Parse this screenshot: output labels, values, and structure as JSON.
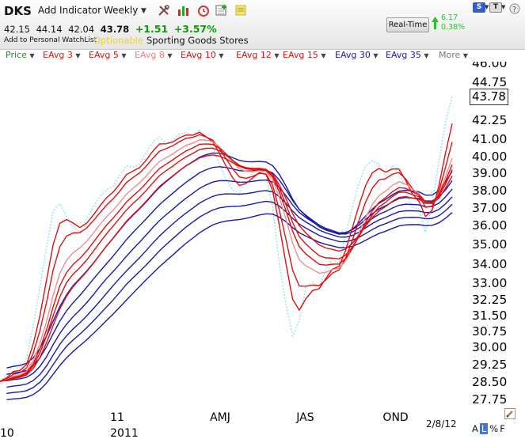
{
  "header": {
    "ticker": "DKS",
    "add_indicator_label": "Add Indicator",
    "period_label": "Weekly",
    "prices": {
      "open": "42.15",
      "high": "44.14",
      "low": "42.04",
      "last": "43.78"
    },
    "change": "+1.51",
    "change_pct": "+3.57%",
    "watchlist_label": "Add to Personal WatchList",
    "optionable_label": "Optionable",
    "sector_label": "Sporting Goods Stores",
    "realtime_label": "Real-Time",
    "rt_change": "6.17",
    "rt_change_pct": "0.38%",
    "s_button": "S",
    "t_button": "T"
  },
  "indicators": [
    {
      "label": "Price",
      "color": "#2f7f2f"
    },
    {
      "label": "EAvg 3",
      "color": "#dd1111"
    },
    {
      "label": "EAvg 5",
      "color": "#dd1111"
    },
    {
      "label": "EAvg 8",
      "color": "#ee7f7f"
    },
    {
      "label": "EAvg 10",
      "color": "#dd1111"
    },
    {
      "label": "EAvg 12",
      "color": "#dd1111"
    },
    {
      "label": "EAvg 15",
      "color": "#dd1111"
    },
    {
      "label": "EAvg 30",
      "color": "#1a1aa8"
    },
    {
      "label": "EAvg 35",
      "color": "#1a1aa8"
    },
    {
      "label": "More",
      "color": "#777777"
    }
  ],
  "chart_data": {
    "type": "line",
    "y_ticks": [
      46.0,
      44.75,
      42.25,
      41.0,
      40.0,
      39.0,
      38.0,
      37.0,
      36.0,
      35.0,
      34.0,
      33.0,
      32.25,
      31.5,
      30.75,
      30.0,
      29.25,
      28.5,
      27.75
    ],
    "y_tick_labels": [
      "46.00",
      "44.75",
      "42.25",
      "41.00",
      "40.00",
      "39.00",
      "38.00",
      "37.00",
      "36.00",
      "35.00",
      "34.00",
      "33.00",
      "32.25",
      "31.50",
      "30.75",
      "30.00",
      "29.25",
      "28.50",
      "27.75"
    ],
    "last_price_label": "43.78",
    "x_labels": [
      {
        "text": "10",
        "w": 0
      },
      {
        "text": "11",
        "w": 18
      },
      {
        "text": "2011",
        "w": 18
      },
      {
        "text": "AMJ",
        "w": 33
      },
      {
        "text": "JAS",
        "w": 46
      },
      {
        "text": "OND",
        "w": 59
      }
    ],
    "weeks": 69,
    "price": [
      28.5,
      28.8,
      29.2,
      29.0,
      29.5,
      31.0,
      32.8,
      34.8,
      36.8,
      37.2,
      36.5,
      35.9,
      35.6,
      36.3,
      37.0,
      37.6,
      38.0,
      38.2,
      38.8,
      39.4,
      39.3,
      39.5,
      40.2,
      40.8,
      41.1,
      40.7,
      40.9,
      41.3,
      41.4,
      41.2,
      41.6,
      40.8,
      40.5,
      39.5,
      38.6,
      38.0,
      37.8,
      38.5,
      39.0,
      39.3,
      38.8,
      37.0,
      34.0,
      32.0,
      30.5,
      31.2,
      32.8,
      33.0,
      32.8,
      33.7,
      34.2,
      34.0,
      35.5,
      37.0,
      38.4,
      39.4,
      39.7,
      39.5,
      38.8,
      39.4,
      39.2,
      37.9,
      37.0,
      36.9,
      35.6,
      37.2,
      39.6,
      42.1,
      43.78
    ],
    "series": [
      {
        "name": "EAvg 3",
        "color": "#dd1111"
      },
      {
        "name": "EAvg 5",
        "color": "#dd1111"
      },
      {
        "name": "EAvg 8",
        "color": "#ee7f7f"
      },
      {
        "name": "EAvg 10",
        "color": "#dd1111"
      },
      {
        "name": "EAvg 12",
        "color": "#dd1111"
      },
      {
        "name": "EAvg 15",
        "color": "#dd1111"
      },
      {
        "name": "EAvg 30",
        "color": "#1a1aa8"
      },
      {
        "name": "EAvg 35",
        "color": "#1a1aa8"
      }
    ],
    "blue_band_spans": [
      4,
      8,
      12,
      16,
      20,
      25
    ],
    "price_color": "#8fe0ef"
  },
  "footer": {
    "date": "2/8/12",
    "a_btn": "A",
    "l_btn": "L",
    "pct_btn": "%",
    "f_btn": "F"
  }
}
